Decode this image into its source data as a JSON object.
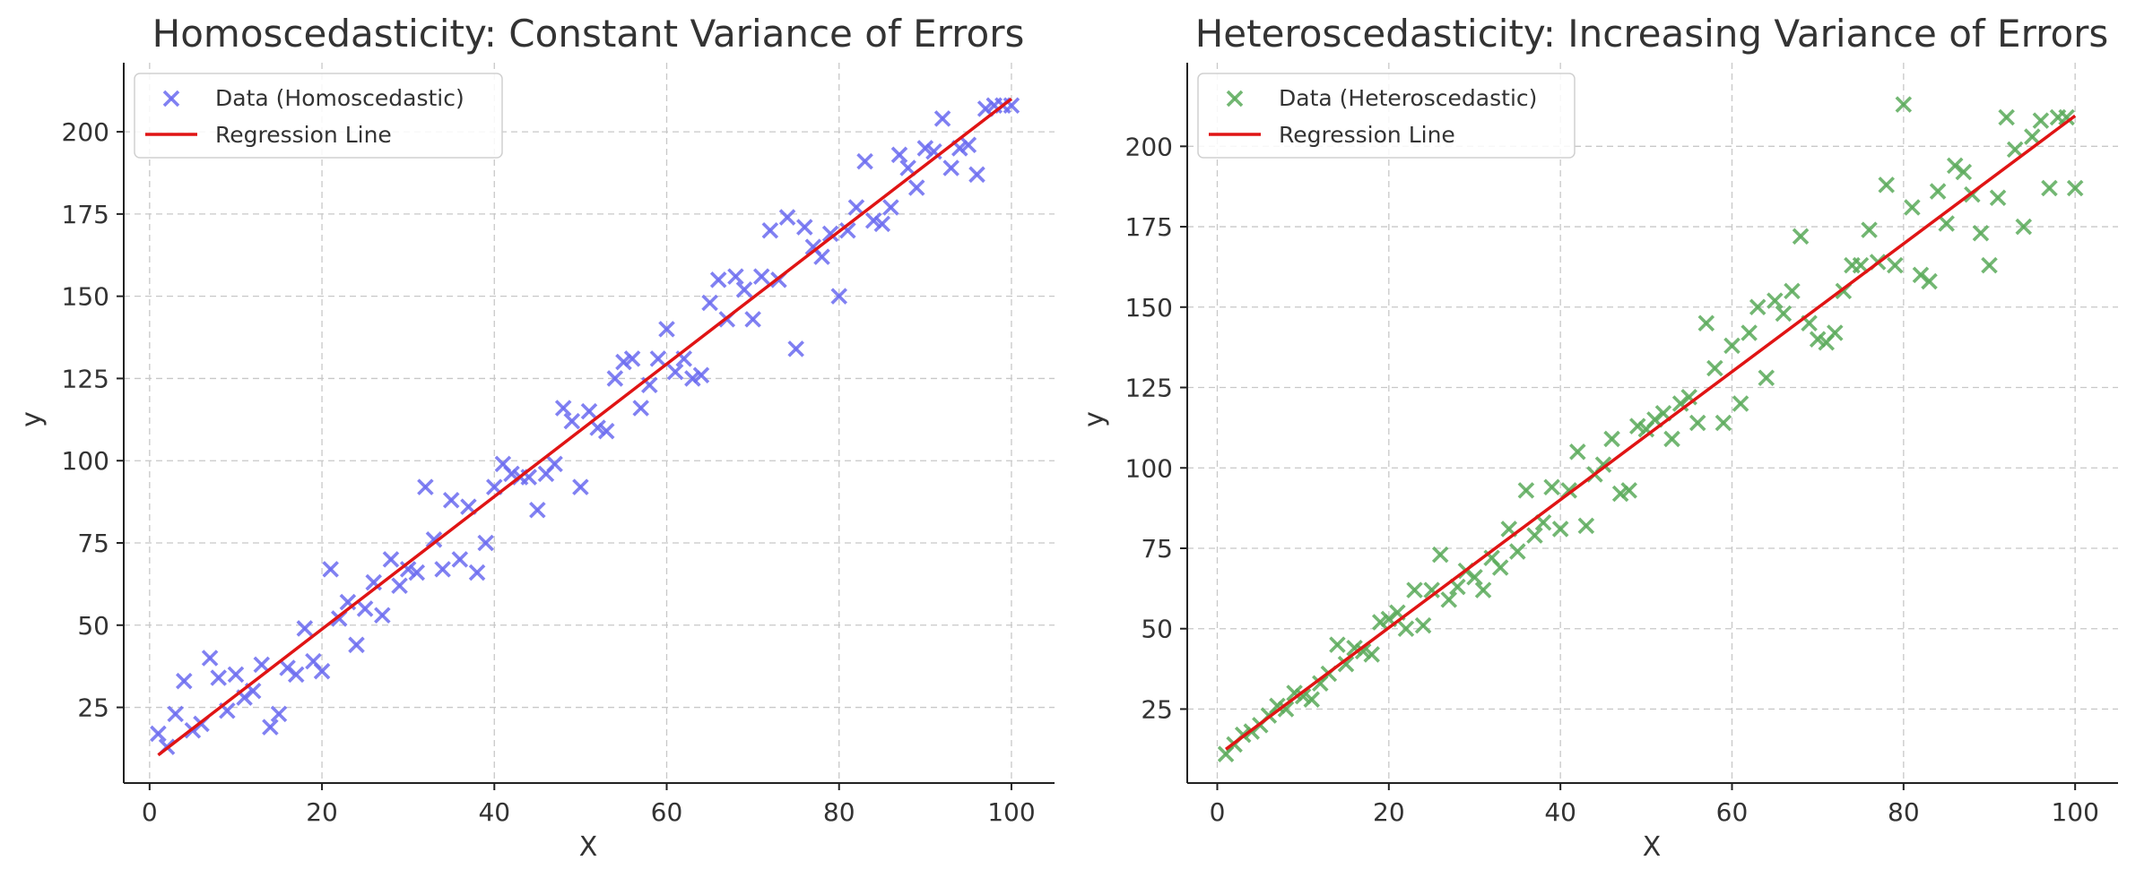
{
  "colors": {
    "homoscedastic_marker": "#6b6bf0",
    "heteroscedastic_marker": "#5aaa5a",
    "regression_line": "#e01414"
  },
  "chart_data": [
    {
      "type": "scatter",
      "title": "Homoscedasticity: Constant Variance of Errors",
      "xlabel": "X",
      "ylabel": "y",
      "xlim": [
        -3,
        105
      ],
      "ylim": [
        2,
        221
      ],
      "xticks": [
        0,
        20,
        40,
        60,
        80,
        100
      ],
      "yticks": [
        25,
        50,
        75,
        100,
        125,
        150,
        175,
        200
      ],
      "grid": true,
      "legend_position": "top-left",
      "series": [
        {
          "name": "Data (Homoscedastic)",
          "marker": "x",
          "color": "#6b6bf0",
          "points": [
            [
              1,
              17
            ],
            [
              2,
              13
            ],
            [
              3,
              23
            ],
            [
              4,
              33
            ],
            [
              5,
              18
            ],
            [
              6,
              20
            ],
            [
              7,
              40
            ],
            [
              8,
              34
            ],
            [
              9,
              24
            ],
            [
              10,
              35
            ],
            [
              11,
              28
            ],
            [
              12,
              30
            ],
            [
              13,
              38
            ],
            [
              14,
              19
            ],
            [
              15,
              23
            ],
            [
              16,
              37
            ],
            [
              17,
              35
            ],
            [
              18,
              49
            ],
            [
              19,
              39
            ],
            [
              20,
              36
            ],
            [
              21,
              67
            ],
            [
              22,
              52
            ],
            [
              23,
              57
            ],
            [
              24,
              44
            ],
            [
              25,
              55
            ],
            [
              26,
              63
            ],
            [
              27,
              53
            ],
            [
              28,
              70
            ],
            [
              29,
              62
            ],
            [
              30,
              67
            ],
            [
              31,
              66
            ],
            [
              32,
              92
            ],
            [
              33,
              76
            ],
            [
              34,
              67
            ],
            [
              35,
              88
            ],
            [
              36,
              70
            ],
            [
              37,
              86
            ],
            [
              38,
              66
            ],
            [
              39,
              75
            ],
            [
              40,
              92
            ],
            [
              41,
              99
            ],
            [
              42,
              96
            ],
            [
              43,
              95
            ],
            [
              44,
              95
            ],
            [
              45,
              85
            ],
            [
              46,
              96
            ],
            [
              47,
              99
            ],
            [
              48,
              116
            ],
            [
              49,
              112
            ],
            [
              50,
              92
            ],
            [
              51,
              115
            ],
            [
              52,
              110
            ],
            [
              53,
              109
            ],
            [
              54,
              125
            ],
            [
              55,
              130
            ],
            [
              56,
              131
            ],
            [
              57,
              116
            ],
            [
              58,
              123
            ],
            [
              59,
              131
            ],
            [
              60,
              140
            ],
            [
              61,
              127
            ],
            [
              62,
              131
            ],
            [
              63,
              125
            ],
            [
              64,
              126
            ],
            [
              65,
              148
            ],
            [
              66,
              155
            ],
            [
              67,
              143
            ],
            [
              68,
              156
            ],
            [
              69,
              152
            ],
            [
              70,
              143
            ],
            [
              71,
              156
            ],
            [
              72,
              170
            ],
            [
              73,
              155
            ],
            [
              74,
              174
            ],
            [
              75,
              134
            ],
            [
              76,
              171
            ],
            [
              77,
              165
            ],
            [
              78,
              162
            ],
            [
              79,
              169
            ],
            [
              80,
              150
            ],
            [
              81,
              170
            ],
            [
              82,
              177
            ],
            [
              83,
              191
            ],
            [
              84,
              173
            ],
            [
              85,
              172
            ],
            [
              86,
              177
            ],
            [
              87,
              193
            ],
            [
              88,
              189
            ],
            [
              89,
              183
            ],
            [
              90,
              195
            ],
            [
              91,
              194
            ],
            [
              92,
              204
            ],
            [
              93,
              189
            ],
            [
              94,
              195
            ],
            [
              95,
              196
            ],
            [
              96,
              187
            ],
            [
              97,
              207
            ],
            [
              98,
              208
            ],
            [
              99,
              208
            ],
            [
              100,
              208
            ]
          ]
        },
        {
          "name": "Regression Line",
          "type": "line",
          "color": "#e01414",
          "x": [
            1,
            100
          ],
          "y": [
            10.5,
            210
          ]
        }
      ]
    },
    {
      "type": "scatter",
      "title": "Heteroscedasticity: Increasing Variance of Errors",
      "xlabel": "X",
      "ylabel": "y",
      "xlim": [
        -3.5,
        105
      ],
      "ylim": [
        2,
        226
      ],
      "xticks": [
        0,
        20,
        40,
        60,
        80,
        100
      ],
      "yticks": [
        25,
        50,
        75,
        100,
        125,
        150,
        175,
        200
      ],
      "grid": true,
      "legend_position": "top-left",
      "series": [
        {
          "name": "Data (Heteroscedastic)",
          "marker": "x",
          "color": "#5aaa5a",
          "points": [
            [
              1,
              11
            ],
            [
              2,
              14
            ],
            [
              3,
              17
            ],
            [
              4,
              18
            ],
            [
              5,
              20
            ],
            [
              6,
              23
            ],
            [
              7,
              26
            ],
            [
              8,
              25
            ],
            [
              9,
              30
            ],
            [
              10,
              29
            ],
            [
              11,
              28
            ],
            [
              12,
              33
            ],
            [
              13,
              36
            ],
            [
              14,
              45
            ],
            [
              15,
              39
            ],
            [
              16,
              44
            ],
            [
              17,
              43
            ],
            [
              18,
              42
            ],
            [
              19,
              52
            ],
            [
              20,
              53
            ],
            [
              21,
              55
            ],
            [
              22,
              50
            ],
            [
              23,
              62
            ],
            [
              24,
              51
            ],
            [
              25,
              62
            ],
            [
              26,
              73
            ],
            [
              27,
              59
            ],
            [
              28,
              63
            ],
            [
              29,
              68
            ],
            [
              30,
              66
            ],
            [
              31,
              62
            ],
            [
              32,
              72
            ],
            [
              33,
              69
            ],
            [
              34,
              81
            ],
            [
              35,
              74
            ],
            [
              36,
              93
            ],
            [
              37,
              79
            ],
            [
              38,
              83
            ],
            [
              39,
              94
            ],
            [
              40,
              81
            ],
            [
              41,
              93
            ],
            [
              42,
              105
            ],
            [
              43,
              82
            ],
            [
              44,
              98
            ],
            [
              45,
              101
            ],
            [
              46,
              109
            ],
            [
              47,
              92
            ],
            [
              48,
              93
            ],
            [
              49,
              113
            ],
            [
              50,
              112
            ],
            [
              51,
              115
            ],
            [
              52,
              117
            ],
            [
              53,
              109
            ],
            [
              54,
              120
            ],
            [
              55,
              122
            ],
            [
              56,
              114
            ],
            [
              57,
              145
            ],
            [
              58,
              131
            ],
            [
              59,
              114
            ],
            [
              60,
              138
            ],
            [
              61,
              120
            ],
            [
              62,
              142
            ],
            [
              63,
              150
            ],
            [
              64,
              128
            ],
            [
              65,
              152
            ],
            [
              66,
              148
            ],
            [
              67,
              155
            ],
            [
              68,
              172
            ],
            [
              69,
              145
            ],
            [
              70,
              140
            ],
            [
              71,
              139
            ],
            [
              72,
              142
            ],
            [
              73,
              155
            ],
            [
              74,
              163
            ],
            [
              75,
              163
            ],
            [
              76,
              174
            ],
            [
              77,
              164
            ],
            [
              78,
              188
            ],
            [
              79,
              163
            ],
            [
              80,
              213
            ],
            [
              81,
              181
            ],
            [
              82,
              160
            ],
            [
              83,
              158
            ],
            [
              84,
              186
            ],
            [
              85,
              176
            ],
            [
              86,
              194
            ],
            [
              87,
              192
            ],
            [
              88,
              185
            ],
            [
              89,
              173
            ],
            [
              90,
              163
            ],
            [
              91,
              184
            ],
            [
              92,
              209
            ],
            [
              93,
              199
            ],
            [
              94,
              175
            ],
            [
              95,
              203
            ],
            [
              96,
              208
            ],
            [
              97,
              187
            ],
            [
              98,
              209
            ],
            [
              99,
              209
            ],
            [
              100,
              187
            ]
          ]
        },
        {
          "name": "Regression Line",
          "type": "line",
          "color": "#e01414",
          "x": [
            1,
            100
          ],
          "y": [
            12.5,
            209.5
          ]
        }
      ]
    }
  ]
}
